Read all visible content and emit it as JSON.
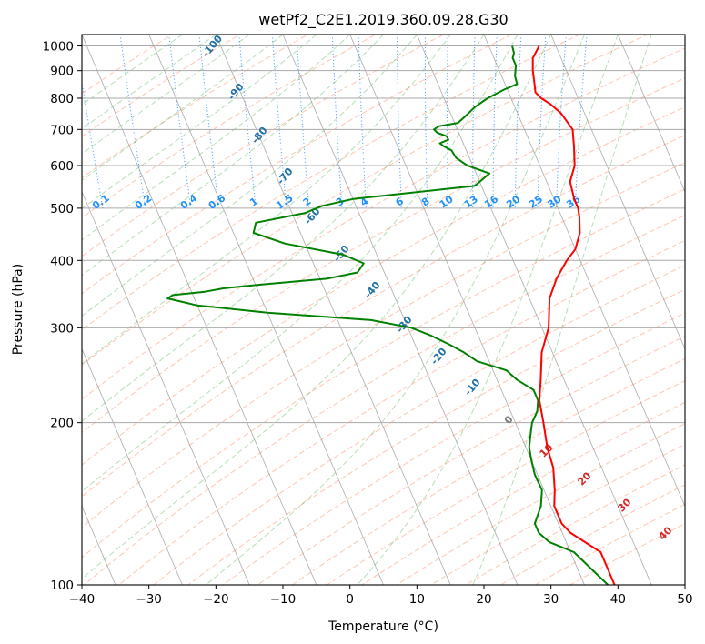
{
  "chart_data": {
    "type": "line",
    "title": "wetPf2_C2E1.2019.360.09.28.G30",
    "xlabel": "Temperature (°C)",
    "ylabel": "Pressure (hPa)",
    "xlim": [
      -40,
      50
    ],
    "ylim": [
      1050,
      100
    ],
    "y_scale": "log",
    "grid": true,
    "x_ticks": [
      "−40",
      "−30",
      "−20",
      "−10",
      "0",
      "10",
      "20",
      "30",
      "40",
      "50"
    ],
    "y_ticks": [
      "100",
      "200",
      "300",
      "400",
      "500",
      "600",
      "700",
      "800",
      "900",
      "1000"
    ],
    "series": [
      {
        "color": "#ff0000",
        "pressure": [
          1000,
          970,
          950,
          900,
          850,
          820,
          800,
          780,
          750,
          700,
          650,
          600,
          560,
          520,
          500,
          480,
          450,
          420,
          400,
          370,
          340,
          300,
          270,
          240,
          220,
          200,
          180,
          165,
          150,
          140,
          130,
          125,
          115,
          100
        ],
        "temperature": [
          27.5,
          26.5,
          25.8,
          25,
          24.4,
          24,
          24.5,
          25.5,
          26.5,
          27.2,
          26.3,
          25.2,
          23.5,
          23,
          23,
          22.6,
          21.7,
          20,
          18,
          15.3,
          13,
          11,
          8.4,
          6.5,
          5,
          4.2,
          3.2,
          2.8,
          1.6,
          0.5,
          0.5,
          1.2,
          4.5,
          4.5
        ]
      },
      {
        "color": "#008000",
        "pressure": [
          1000,
          970,
          950,
          920,
          880,
          850,
          830,
          800,
          770,
          740,
          720,
          710,
          700,
          690,
          680,
          670,
          660,
          650,
          640,
          620,
          600,
          580,
          550,
          520,
          505,
          490,
          470,
          450,
          430,
          410,
          395,
          380,
          370,
          360,
          355,
          350,
          345,
          340,
          335,
          330,
          325,
          320,
          310,
          300,
          290,
          280,
          270,
          260,
          250,
          240,
          230,
          220,
          210,
          200,
          190,
          180,
          170,
          160,
          150,
          140,
          130,
          125,
          120,
          115,
          100
        ],
        "temperature": [
          23.5,
          23.3,
          22.8,
          22.8,
          22,
          21.8,
          19.5,
          16.5,
          14,
          12,
          10.5,
          7.5,
          6.5,
          6.8,
          8,
          8,
          6.5,
          7,
          7.8,
          8,
          9.2,
          12,
          9,
          -10,
          -15,
          -18,
          -26,
          -27,
          -23,
          -15,
          -12.5,
          -14,
          -19,
          -30,
          -35,
          -38,
          -43,
          -44,
          -42,
          -40,
          -35,
          -30,
          -15,
          -9.5,
          -7,
          -5,
          -3.2,
          -1.8,
          2,
          3,
          4.8,
          4.8,
          4,
          2.5,
          1.5,
          0.5,
          0,
          -0.4,
          -0.3,
          -1.5,
          -3.5,
          -3.5,
          -2.5,
          0.5,
          3.5
        ]
      }
    ],
    "background_lines": {
      "dry_adiabats": {
        "color": "#ff7f50",
        "labels": [
          "10",
          "20",
          "30",
          "40"
        ]
      },
      "moist_adiabats": {
        "color": "#2ca02c",
        "labels": [
          "-100",
          "-90",
          "-80",
          "-70",
          "-60",
          "-50",
          "-40",
          "-30",
          "-20",
          "-10",
          "0"
        ]
      },
      "mixing_ratio": {
        "color": "#1e90ff",
        "labels": [
          "0.1",
          "0.2",
          "0.4",
          "0.6",
          "1",
          "1.5",
          "2",
          "3",
          "4",
          "6",
          "8",
          "10",
          "13",
          "16",
          "20",
          "25",
          "30",
          "36"
        ]
      }
    }
  }
}
